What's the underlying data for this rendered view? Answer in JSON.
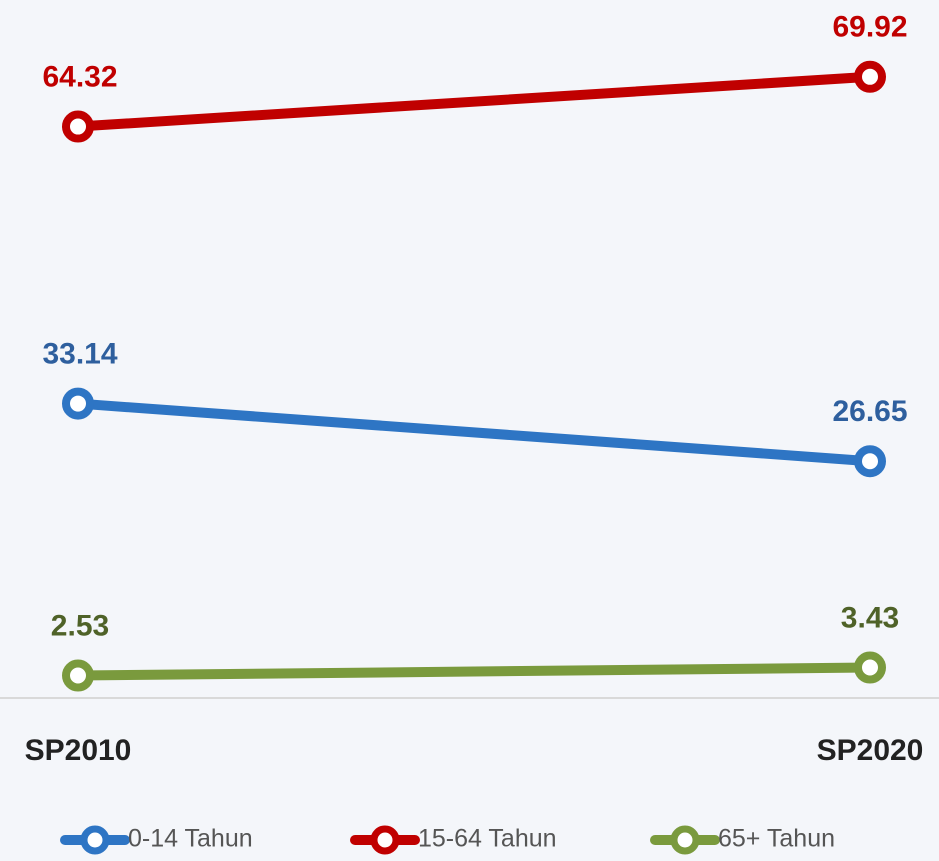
{
  "chart_data": {
    "type": "line",
    "categories": [
      "SP2010",
      "SP2020"
    ],
    "ylim": [
      0,
      78
    ],
    "series": [
      {
        "name": "0-14 Tahun",
        "color": "#2e75c4",
        "label_color": "#2e5f9e",
        "values": [
          33.14,
          26.65
        ]
      },
      {
        "name": "15-64 Tahun",
        "color": "#c00000",
        "label_color": "#c00000",
        "values": [
          64.32,
          69.92
        ]
      },
      {
        "name": "65+ Tahun",
        "color": "#7a9a3d",
        "label_color": "#4f6228",
        "values": [
          2.53,
          3.43
        ]
      }
    ],
    "legend": "bottom"
  }
}
